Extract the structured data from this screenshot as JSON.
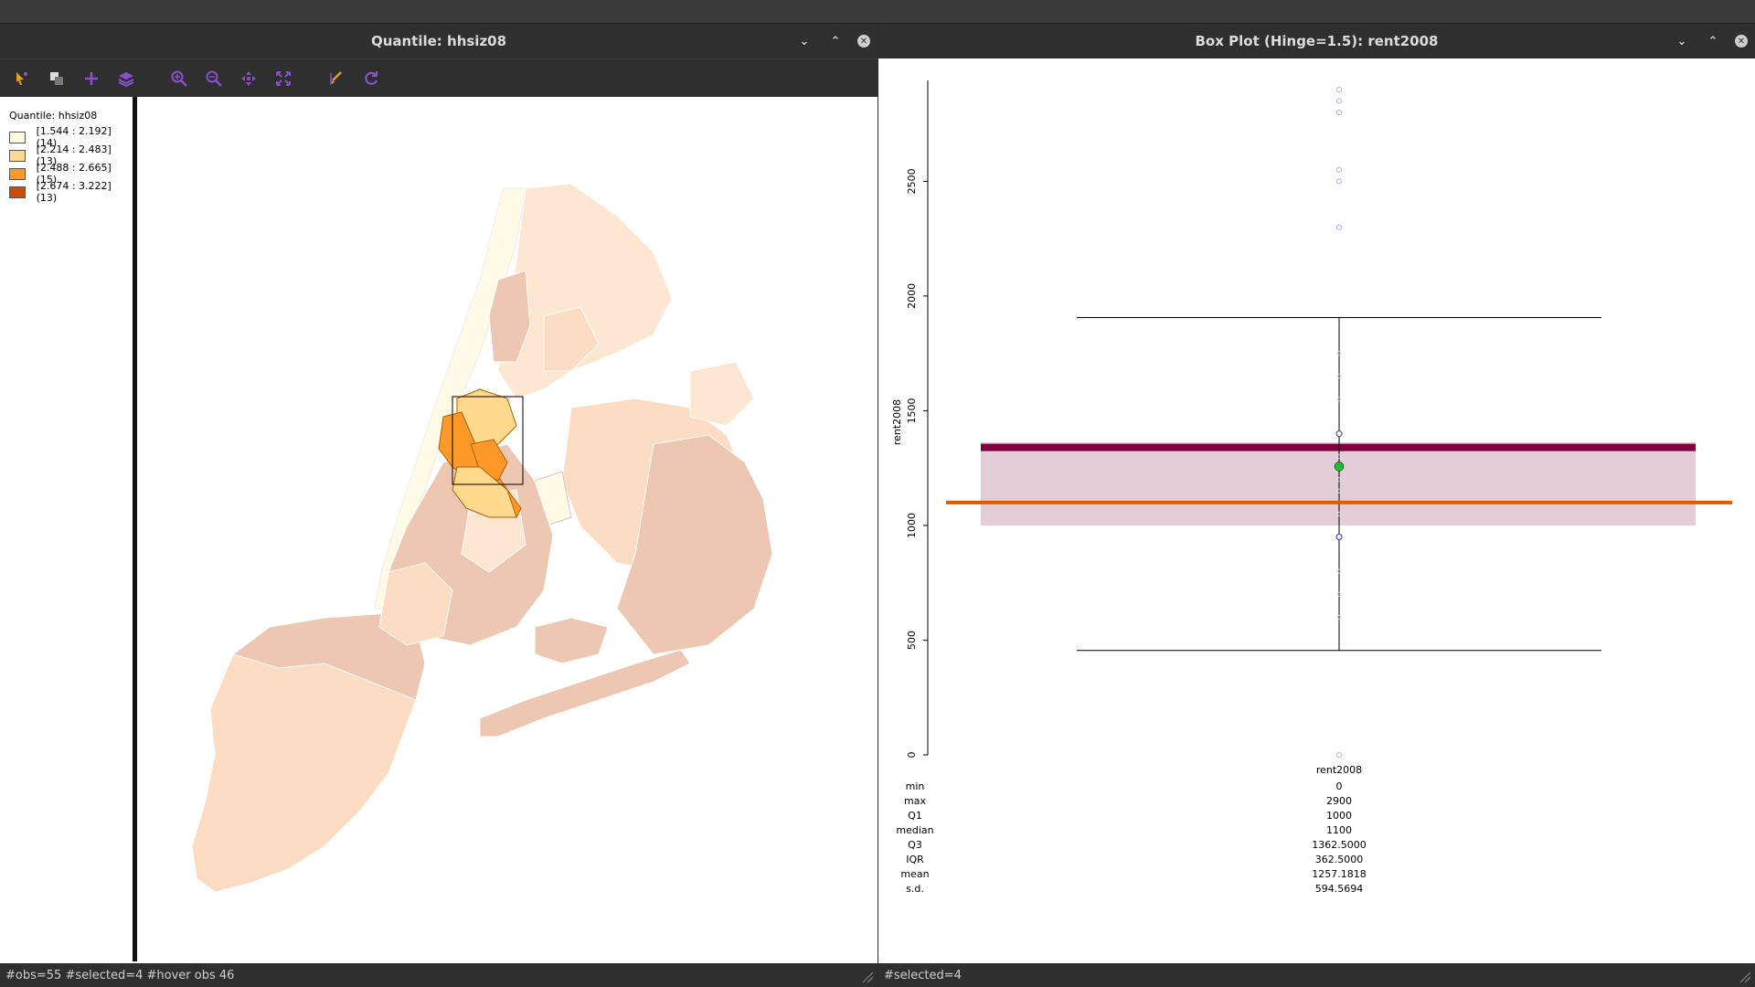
{
  "map_window": {
    "title": "Quantile: hhsiz08",
    "legend": {
      "title": "Quantile: hhsiz08",
      "items": [
        {
          "label": "[1.544 : 2.192] (14)",
          "color": "#fffbdc"
        },
        {
          "label": "[2.214 : 2.483] (13)",
          "color": "#fed98e"
        },
        {
          "label": "[2.488 : 2.665] (15)",
          "color": "#fe9929"
        },
        {
          "label": "[2.674 : 3.222] (13)",
          "color": "#cc4c02"
        }
      ]
    },
    "status": "#obs=55 #selected=4  #hover obs 46",
    "toolbar_icons": [
      "select-icon",
      "layers-select-icon",
      "add-icon",
      "layers-icon",
      "zoom-in-icon",
      "zoom-out-icon",
      "pan-icon",
      "fit-extent-icon",
      "brush-icon",
      "refresh-icon"
    ]
  },
  "box_window": {
    "title": "Box Plot (Hinge=1.5): rent2008",
    "status": "#selected=4",
    "chart_data": {
      "type": "box",
      "variable": "rent2008",
      "ylabel": "rent2008",
      "xlabel": "rent2008",
      "ylim": [
        0,
        2900
      ],
      "yticks": [
        "0",
        "500",
        "1000",
        "1500",
        "2000",
        "2500"
      ],
      "whisker_low": 455,
      "whisker_high": 1906,
      "q1": 1000,
      "median": 1100,
      "q3": 1362.5,
      "mean": 1257.1818,
      "selected_mean": 1340,
      "outliers": [
        0,
        2300,
        2500,
        2550,
        2800,
        2850,
        2900
      ],
      "selected_points": [
        950,
        1400
      ],
      "inner_points": [
        600,
        700,
        800,
        1050,
        1150,
        1200,
        1300,
        1550,
        1650,
        1750
      ],
      "stats": [
        {
          "label": "min",
          "value": "0"
        },
        {
          "label": "max",
          "value": "2900"
        },
        {
          "label": "Q1",
          "value": "1000"
        },
        {
          "label": "median",
          "value": "1100"
        },
        {
          "label": "Q3",
          "value": "1362.5000"
        },
        {
          "label": "IQR",
          "value": "362.5000"
        },
        {
          "label": "mean",
          "value": "1257.1818"
        },
        {
          "label": "s.d.",
          "value": "594.5694"
        }
      ]
    }
  },
  "colors": {
    "box_fill": "#e5ccd9",
    "selected_band": "#800040",
    "median_line": "#e05a00",
    "mean_dot": "#22bb33",
    "point": "#3333cc"
  }
}
